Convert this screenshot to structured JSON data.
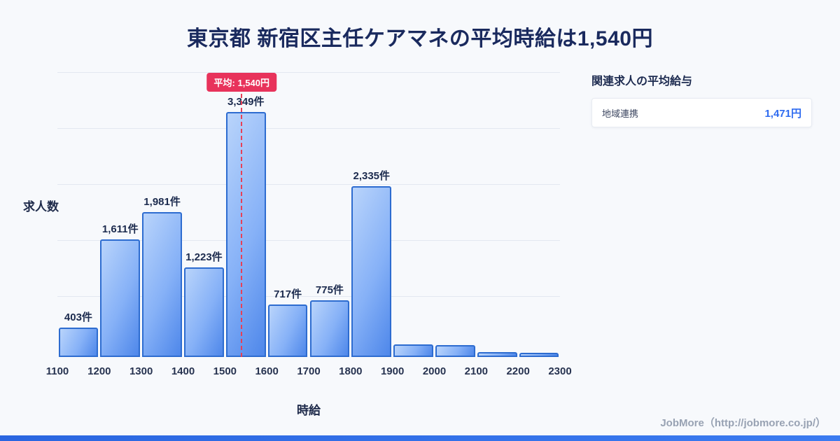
{
  "title": "東京都 新宿区主任ケアマネの平均時給は1,540円",
  "chart_data": {
    "type": "bar",
    "title": "東京都 新宿区主任ケアマネの平均時給は1,540円",
    "xlabel": "時給",
    "ylabel": "求人数",
    "bin_edges": [
      1100,
      1200,
      1300,
      1400,
      1500,
      1600,
      1700,
      1800,
      1900,
      2000,
      2100,
      2200,
      2300
    ],
    "values": [
      403,
      1611,
      1981,
      1223,
      3349,
      717,
      775,
      2335,
      170,
      165,
      65,
      55
    ],
    "labels": [
      "403件",
      "1,611件",
      "1,981件",
      "1,223件",
      "3,349件",
      "717件",
      "775件",
      "2,335件",
      "",
      "",
      "",
      ""
    ],
    "ylim": [
      0,
      3500
    ],
    "grid": true,
    "legend": "none",
    "average": {
      "value": 1540,
      "label": "平均: 1,540円"
    }
  },
  "side_panel": {
    "heading": "関連求人の平均給与",
    "rows": [
      {
        "label": "地域連携",
        "value": "1,471円"
      }
    ]
  },
  "footer": {
    "credit": "JobMore（http://jobmore.co.jp/）"
  },
  "colors": {
    "background": "#f7f9fc",
    "title_navy": "#1a2a5e",
    "bar_fill_light": "#b9d4fb",
    "bar_fill_mid": "#86b1f7",
    "bar_fill_dark": "#4e87ea",
    "bar_border": "#2d6cd0",
    "average_red": "#e8335b",
    "value_blue": "#2e6bf0",
    "accent_blue": "#2a66e0"
  }
}
